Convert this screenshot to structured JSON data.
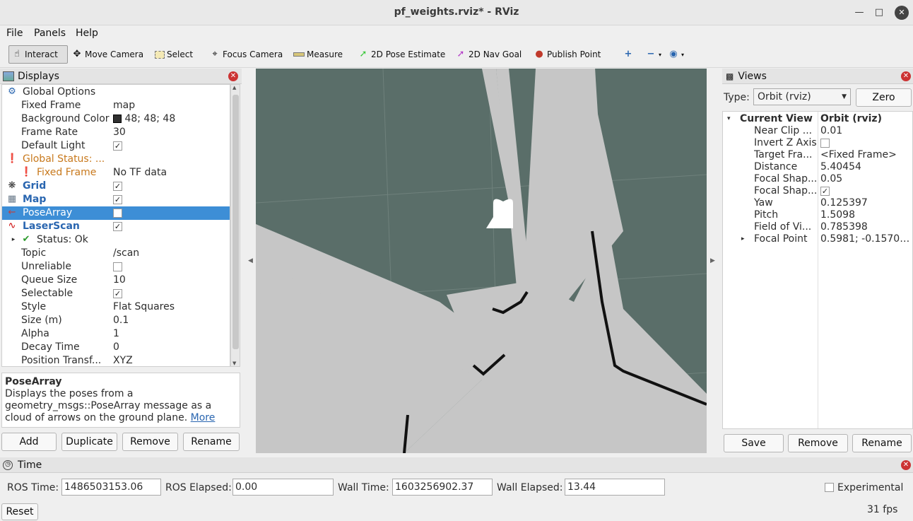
{
  "window": {
    "title": "pf_weights.rviz* - RViz"
  },
  "menu": [
    "File",
    "Panels",
    "Help"
  ],
  "toolbar": {
    "interact": "Interact",
    "move_camera": "Move Camera",
    "select": "Select",
    "focus_camera": "Focus Camera",
    "measure": "Measure",
    "pose_estimate": "2D Pose Estimate",
    "nav_goal": "2D Nav Goal",
    "publish_point": "Publish Point"
  },
  "displays": {
    "title": "Displays",
    "global_options": "Global Options",
    "fixed_frame_k": "Fixed Frame",
    "fixed_frame_v": "map",
    "bg_color_k": "Background Color",
    "bg_color_v": "48; 48; 48",
    "frame_rate_k": "Frame Rate",
    "frame_rate_v": "30",
    "default_light_k": "Default Light",
    "global_status": "Global Status: ...",
    "fixed_frame_err_k": "Fixed Frame",
    "fixed_frame_err_v": "No TF data",
    "grid": "Grid",
    "map": "Map",
    "posearray": "PoseArray",
    "laserscan": "LaserScan",
    "status_ok": "Status: Ok",
    "topic_k": "Topic",
    "topic_v": "/scan",
    "unreliable_k": "Unreliable",
    "queue_k": "Queue Size",
    "queue_v": "10",
    "selectable_k": "Selectable",
    "style_k": "Style",
    "style_v": "Flat Squares",
    "size_k": "Size (m)",
    "size_v": "0.1",
    "alpha_k": "Alpha",
    "alpha_v": "1",
    "decay_k": "Decay Time",
    "decay_v": "0",
    "postrans_k": "Position Transf...",
    "postrans_v": "XYZ",
    "desc_title": "PoseArray",
    "desc_text": "Displays the poses from a geometry_msgs::PoseArray message as a cloud of arrows on the ground plane.",
    "desc_link": "More",
    "add": "Add",
    "duplicate": "Duplicate",
    "remove": "Remove",
    "rename": "Rename"
  },
  "views": {
    "title": "Views",
    "type_label": "Type:",
    "type_value": "Orbit (rviz)",
    "zero": "Zero",
    "current_view_k": "Current View",
    "current_view_v": "Orbit (rviz)",
    "rows": [
      {
        "k": "Near Clip ...",
        "v": "0.01"
      },
      {
        "k": "Invert Z Axis",
        "v": ""
      },
      {
        "k": "Target Fra...",
        "v": "<Fixed Frame>"
      },
      {
        "k": "Distance",
        "v": "5.40454"
      },
      {
        "k": "Focal Shap...",
        "v": "0.05"
      },
      {
        "k": "Focal Shap...",
        "v": ""
      },
      {
        "k": "Yaw",
        "v": "0.125397"
      },
      {
        "k": "Pitch",
        "v": "1.5098"
      },
      {
        "k": "Field of Vi...",
        "v": "0.785398"
      },
      {
        "k": "Focal Point",
        "v": "0.5981; -0.15707..."
      }
    ],
    "save": "Save",
    "remove": "Remove",
    "rename": "Rename"
  },
  "time": {
    "title": "Time",
    "ros_time_label": "ROS Time:",
    "ros_time": "1486503153.06",
    "ros_elapsed_label": "ROS Elapsed:",
    "ros_elapsed": "0.00",
    "wall_time_label": "Wall Time:",
    "wall_time": "1603256902.37",
    "wall_elapsed_label": "Wall Elapsed:",
    "wall_elapsed": "13.44",
    "experimental": "Experimental",
    "reset": "Reset",
    "fps": "31 fps"
  },
  "colors": {
    "viewport_bg": "#5a6e69",
    "map_free": "#c6c6c6",
    "selection": "#3d8ed6"
  }
}
